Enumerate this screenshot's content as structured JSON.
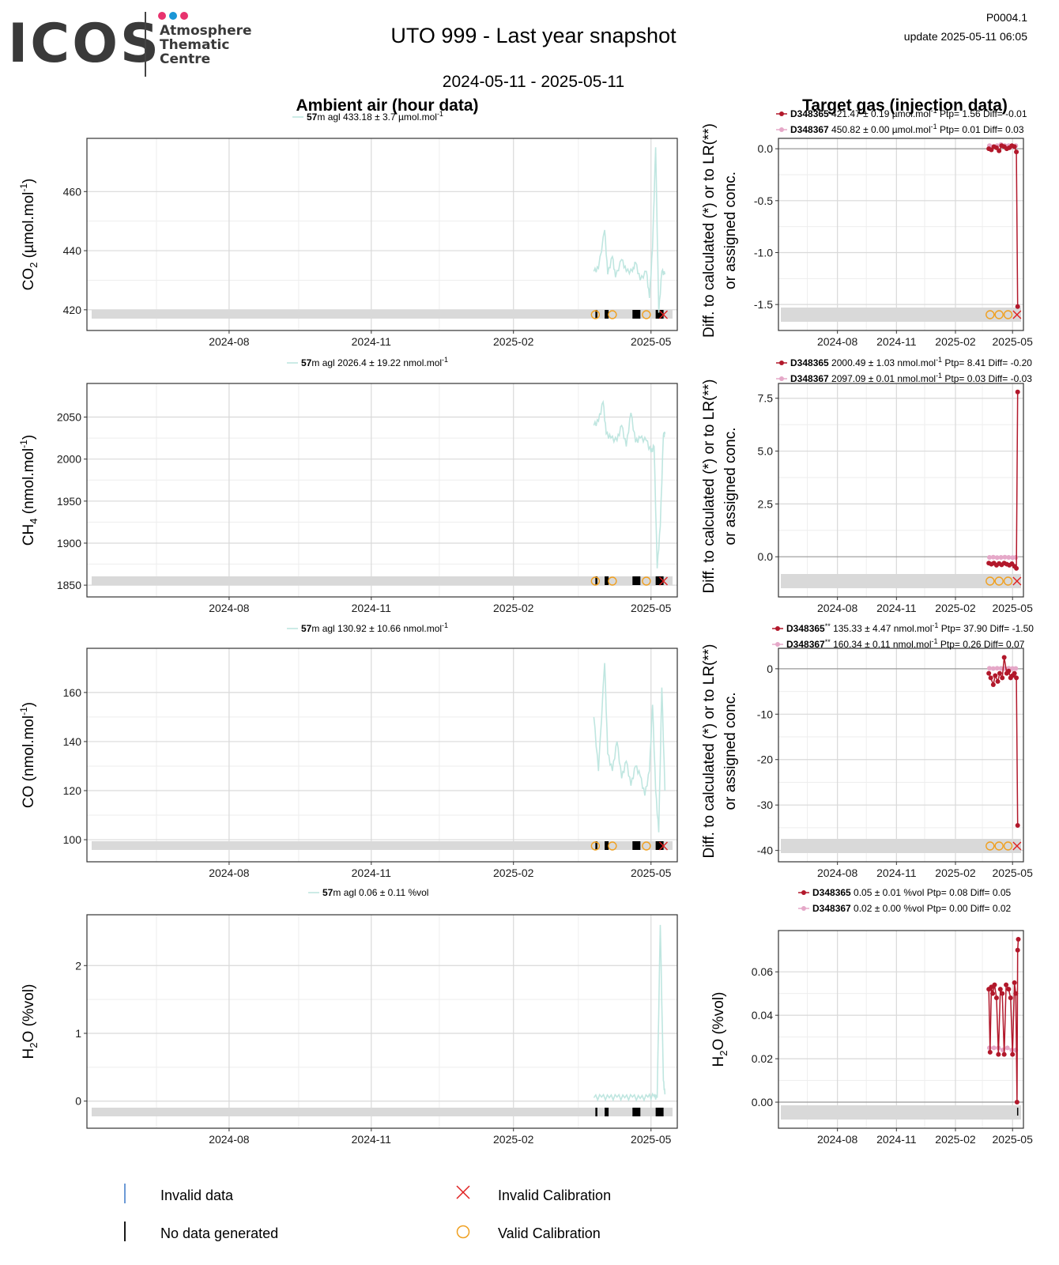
{
  "header": {
    "logo_text": "ICOS",
    "logo_sub": [
      "Atmosphere",
      "Thematic",
      "Centre"
    ],
    "logo_dot_colors": [
      "#e8336e",
      "#1a96d6",
      "#e8336e"
    ],
    "title": "UTO 999 - Last year snapshot",
    "date_range": "2024-05-11 - 2025-05-11",
    "product_code": "P0004.1",
    "update": "update  2025-05-11 06:05",
    "left_column_title": "Ambient air (hour data)",
    "right_column_title": "Target gas (injection data)"
  },
  "colors": {
    "ambient_line": "#bfe6e0",
    "target1": "#b2182b",
    "target2": "#e5a8c8",
    "valid_cal": "#f0a020",
    "invalid_cal": "#e02020",
    "invalid_data": "#3c78c8",
    "grid": "#d9d9d9",
    "band": "#d9d9d9"
  },
  "right_ylabel": [
    "Diff. to calculated (*) or to LR(**)",
    "or assigned conc."
  ],
  "chart_data": [
    {
      "id": "co2",
      "type": "line",
      "ylabel_main": "CO",
      "ylabel_sub": "2",
      "ylabel_rest": " (µmol.mol",
      "ylabel_sup": "-1",
      "ylabel_end": ")",
      "x_ticks": [
        "2024-08",
        "2024-11",
        "2025-02",
        "2025-05"
      ],
      "ylim": [
        413,
        478
      ],
      "yticks": [
        420,
        440,
        460
      ],
      "legend": {
        "height_label": "57",
        "unit": "m agl",
        "stats": " 433.18 ± 3.7 µmol.mol",
        "sup": "-1"
      },
      "series": [
        {
          "name": "57m agl",
          "x": [
            "2025-03-25",
            "2025-03-28",
            "2025-04-01",
            "2025-04-03",
            "2025-04-06",
            "2025-04-08",
            "2025-04-12",
            "2025-04-15",
            "2025-04-19",
            "2025-04-21",
            "2025-04-24",
            "2025-04-28",
            "2025-04-30",
            "2025-05-02",
            "2025-05-04",
            "2025-05-06",
            "2025-05-08",
            "2025-05-10"
          ],
          "y": [
            433,
            434,
            447,
            432,
            438,
            431,
            437,
            433,
            433,
            436,
            430,
            433,
            424,
            441,
            475,
            419,
            433,
            432
          ]
        }
      ],
      "target": {
        "ylim": [
          -1.75,
          0.1
        ],
        "yticks": [
          0.0,
          -0.5,
          -1.0,
          -1.5
        ],
        "ytick_labels": [
          "0.0",
          "-0.5",
          "-1.0",
          "-1.5"
        ],
        "t1": {
          "name": "D348365",
          "stats": " 421.47 ± 0.19 µmol.mol",
          "sup": "-1",
          "tail": " Ptp= 1.56 Diff= -0.01",
          "x": [
            "2025-03-25",
            "2025-03-29",
            "2025-04-02",
            "2025-04-06",
            "2025-04-10",
            "2025-04-14",
            "2025-04-18",
            "2025-04-22",
            "2025-04-26",
            "2025-04-30",
            "2025-05-04",
            "2025-05-07",
            "2025-05-09"
          ],
          "y": [
            0.0,
            -0.01,
            0.02,
            0.01,
            -0.02,
            0.03,
            0.02,
            0.0,
            0.01,
            0.03,
            0.02,
            -0.03,
            -1.52
          ]
        },
        "t2": {
          "name": "D348367",
          "stats": " 450.82 ± 0.00 µmol.mol",
          "sup": "-1",
          "tail": " Ptp= 0.01 Diff= 0.03",
          "x": [
            "2025-03-26",
            "2025-04-01",
            "2025-04-07",
            "2025-04-13",
            "2025-04-19",
            "2025-04-25",
            "2025-05-01",
            "2025-05-06"
          ],
          "y": [
            0.03,
            0.02,
            0.03,
            0.04,
            0.03,
            0.03,
            0.02,
            0.03
          ]
        }
      }
    },
    {
      "id": "ch4",
      "type": "line",
      "ylabel_main": "CH",
      "ylabel_sub": "4",
      "ylabel_rest": " (nmol.mol",
      "ylabel_sup": "-1",
      "ylabel_end": ")",
      "x_ticks": [
        "2024-08",
        "2024-11",
        "2025-02",
        "2025-05"
      ],
      "ylim": [
        1836,
        2090
      ],
      "yticks": [
        1850,
        1900,
        1950,
        2000,
        2050
      ],
      "legend": {
        "height_label": "57",
        "unit": "m agl",
        "stats": " 2026.4 ± 19.22 nmol.mol",
        "sup": "-1"
      },
      "series": [
        {
          "name": "57m agl",
          "x": [
            "2025-03-25",
            "2025-03-28",
            "2025-03-31",
            "2025-04-02",
            "2025-04-05",
            "2025-04-09",
            "2025-04-12",
            "2025-04-15",
            "2025-04-18",
            "2025-04-21",
            "2025-04-24",
            "2025-04-28",
            "2025-05-01",
            "2025-05-03",
            "2025-05-05",
            "2025-05-07",
            "2025-05-09",
            "2025-05-10"
          ],
          "y": [
            2040,
            2045,
            2068,
            2030,
            2025,
            2022,
            2040,
            2015,
            2055,
            2020,
            2025,
            2022,
            2008,
            2015,
            1870,
            1920,
            2028,
            2030
          ]
        }
      ],
      "target": {
        "ylim": [
          -1.9,
          8.2
        ],
        "yticks": [
          0.0,
          2.5,
          5.0,
          7.5
        ],
        "ytick_labels": [
          "0.0",
          "2.5",
          "5.0",
          "7.5"
        ],
        "t1": {
          "name": "D348365",
          "stats": " 2000.49 ± 1.03 nmol.mol",
          "sup": "-1",
          "tail": " Ptp= 8.41 Diff= -0.20",
          "x": [
            "2025-03-25",
            "2025-03-29",
            "2025-04-02",
            "2025-04-06",
            "2025-04-10",
            "2025-04-14",
            "2025-04-18",
            "2025-04-22",
            "2025-04-26",
            "2025-04-30",
            "2025-05-04",
            "2025-05-07",
            "2025-05-09"
          ],
          "y": [
            -0.3,
            -0.35,
            -0.3,
            -0.4,
            -0.32,
            -0.38,
            -0.3,
            -0.35,
            -0.4,
            -0.33,
            -0.45,
            -0.55,
            7.8
          ]
        },
        "t2": {
          "name": "D348367",
          "stats": " 2097.09 ± 0.01 nmol.mol",
          "sup": "-1",
          "tail": " Ptp= 0.03 Diff= -0.03",
          "x": [
            "2025-03-26",
            "2025-04-01",
            "2025-04-07",
            "2025-04-13",
            "2025-04-19",
            "2025-04-25",
            "2025-05-01",
            "2025-05-06"
          ],
          "y": [
            -0.03,
            -0.02,
            -0.04,
            -0.03,
            -0.02,
            -0.03,
            -0.04,
            -0.03
          ]
        }
      }
    },
    {
      "id": "co",
      "type": "line",
      "ylabel_main": "CO",
      "ylabel_sub": "",
      "ylabel_rest": " (nmol.mol",
      "ylabel_sup": "-1",
      "ylabel_end": ")",
      "x_ticks": [
        "2024-08",
        "2024-11",
        "2025-02",
        "2025-05"
      ],
      "ylim": [
        91,
        178
      ],
      "yticks": [
        100,
        120,
        140,
        160
      ],
      "legend": {
        "height_label": "57",
        "unit": "m agl",
        "stats": " 130.92 ± 10.66 nmol.mol",
        "sup": "-1"
      },
      "series": [
        {
          "name": "57m agl",
          "x": [
            "2025-03-25",
            "2025-03-28",
            "2025-04-01",
            "2025-04-03",
            "2025-04-06",
            "2025-04-09",
            "2025-04-12",
            "2025-04-15",
            "2025-04-18",
            "2025-04-21",
            "2025-04-24",
            "2025-04-27",
            "2025-04-30",
            "2025-05-02",
            "2025-05-04",
            "2025-05-06",
            "2025-05-08",
            "2025-05-10"
          ],
          "y": [
            150,
            128,
            172,
            135,
            128,
            140,
            125,
            132,
            122,
            130,
            126,
            118,
            128,
            155,
            120,
            103,
            162,
            120
          ]
        }
      ],
      "target": {
        "ylim": [
          -42.5,
          4.5
        ],
        "yticks": [
          0,
          -10,
          -20,
          -30,
          -40
        ],
        "ytick_labels": [
          "0",
          "-10",
          "-20",
          "-30",
          "-40"
        ],
        "t1": {
          "name": "D348365",
          "stats": " 135.33 ± 4.47 nmol.mol",
          "sup": "-1",
          "tail": " Ptp= 37.90 Diff= -1.50",
          "x": [
            "2025-03-25",
            "2025-03-28",
            "2025-04-01",
            "2025-04-04",
            "2025-04-08",
            "2025-04-11",
            "2025-04-15",
            "2025-04-18",
            "2025-04-22",
            "2025-04-25",
            "2025-04-28",
            "2025-05-01",
            "2025-05-04",
            "2025-05-07",
            "2025-05-09"
          ],
          "y": [
            -1.0,
            -2.0,
            -3.5,
            -1.5,
            -2.8,
            -1.0,
            -2.0,
            2.5,
            -1.0,
            -0.5,
            -2.0,
            -1.5,
            -1.0,
            -2.0,
            -34.5
          ]
        },
        "t2": {
          "name": "D348367",
          "stats": " 160.34 ± 0.11 nmol.mol",
          "sup": "-1",
          "tail": " Ptp= 0.26 Diff= 0.07",
          "x": [
            "2025-03-26",
            "2025-04-01",
            "2025-04-07",
            "2025-04-13",
            "2025-04-19",
            "2025-04-25",
            "2025-05-01",
            "2025-05-06"
          ],
          "y": [
            0.1,
            0.05,
            0.1,
            0.08,
            0.05,
            0.1,
            0.07,
            0.06
          ]
        }
      }
    },
    {
      "id": "h2o",
      "type": "line",
      "ylabel_main": "H",
      "ylabel_sub": "2",
      "ylabel_rest": "O (%vol)",
      "ylabel_sup": "",
      "ylabel_end": "",
      "x_ticks": [
        "2024-08",
        "2024-11",
        "2025-02",
        "2025-05"
      ],
      "ylim": [
        -0.4,
        2.75
      ],
      "yticks": [
        0,
        1,
        2
      ],
      "legend": {
        "height_label": "57",
        "unit": "m agl",
        "stats": " 0.06 ± 0.11 %vol",
        "sup": ""
      },
      "series": [
        {
          "name": "57m agl",
          "x": [
            "2025-03-25",
            "2025-03-30",
            "2025-04-04",
            "2025-04-09",
            "2025-04-14",
            "2025-04-19",
            "2025-04-24",
            "2025-04-29",
            "2025-05-03",
            "2025-05-05",
            "2025-05-07",
            "2025-05-09",
            "2025-05-10"
          ],
          "y": [
            0.05,
            0.06,
            0.05,
            0.06,
            0.05,
            0.06,
            0.04,
            0.06,
            0.07,
            0.05,
            2.6,
            0.3,
            0.1
          ]
        }
      ],
      "target": {
        "ylim": [
          -0.012,
          0.079
        ],
        "yticks": [
          0.0,
          0.02,
          0.04,
          0.06
        ],
        "ytick_labels": [
          "0.00",
          "0.02",
          "0.04",
          "0.06"
        ],
        "t1": {
          "name": "D348365",
          "stats": " 0.05 ± 0.01 %vol",
          "sup": "",
          "tail": " Ptp= 0.08 Diff= 0.05",
          "x": [
            "2025-03-25",
            "2025-03-27",
            "2025-03-29",
            "2025-03-31",
            "2025-04-03",
            "2025-04-06",
            "2025-04-09",
            "2025-04-12",
            "2025-04-15",
            "2025-04-18",
            "2025-04-21",
            "2025-04-25",
            "2025-04-28",
            "2025-05-01",
            "2025-05-04",
            "2025-05-06",
            "2025-05-08",
            "2025-05-09",
            "2025-05-10"
          ],
          "y": [
            0.052,
            0.023,
            0.053,
            0.05,
            0.054,
            0.048,
            0.022,
            0.052,
            0.05,
            0.022,
            0.054,
            0.052,
            0.048,
            0.022,
            0.055,
            0.05,
            0.0,
            0.07,
            0.075
          ]
        },
        "t2": {
          "name": "D348367",
          "stats": " 0.02 ± 0.00 %vol",
          "sup": "",
          "tail": " Ptp= 0.00 Diff= 0.02",
          "x": [
            "2025-03-26",
            "2025-04-02",
            "2025-04-09",
            "2025-04-16",
            "2025-04-23",
            "2025-04-30",
            "2025-05-06"
          ],
          "y": [
            0.025,
            0.025,
            0.025,
            0.024,
            0.025,
            0.024,
            0.024
          ]
        }
      }
    }
  ],
  "bottom_legend": {
    "invalid_data": "Invalid data",
    "invalid_calibration": "Invalid Calibration",
    "no_data": "No data generated",
    "valid_calibration": "Valid Calibration"
  }
}
